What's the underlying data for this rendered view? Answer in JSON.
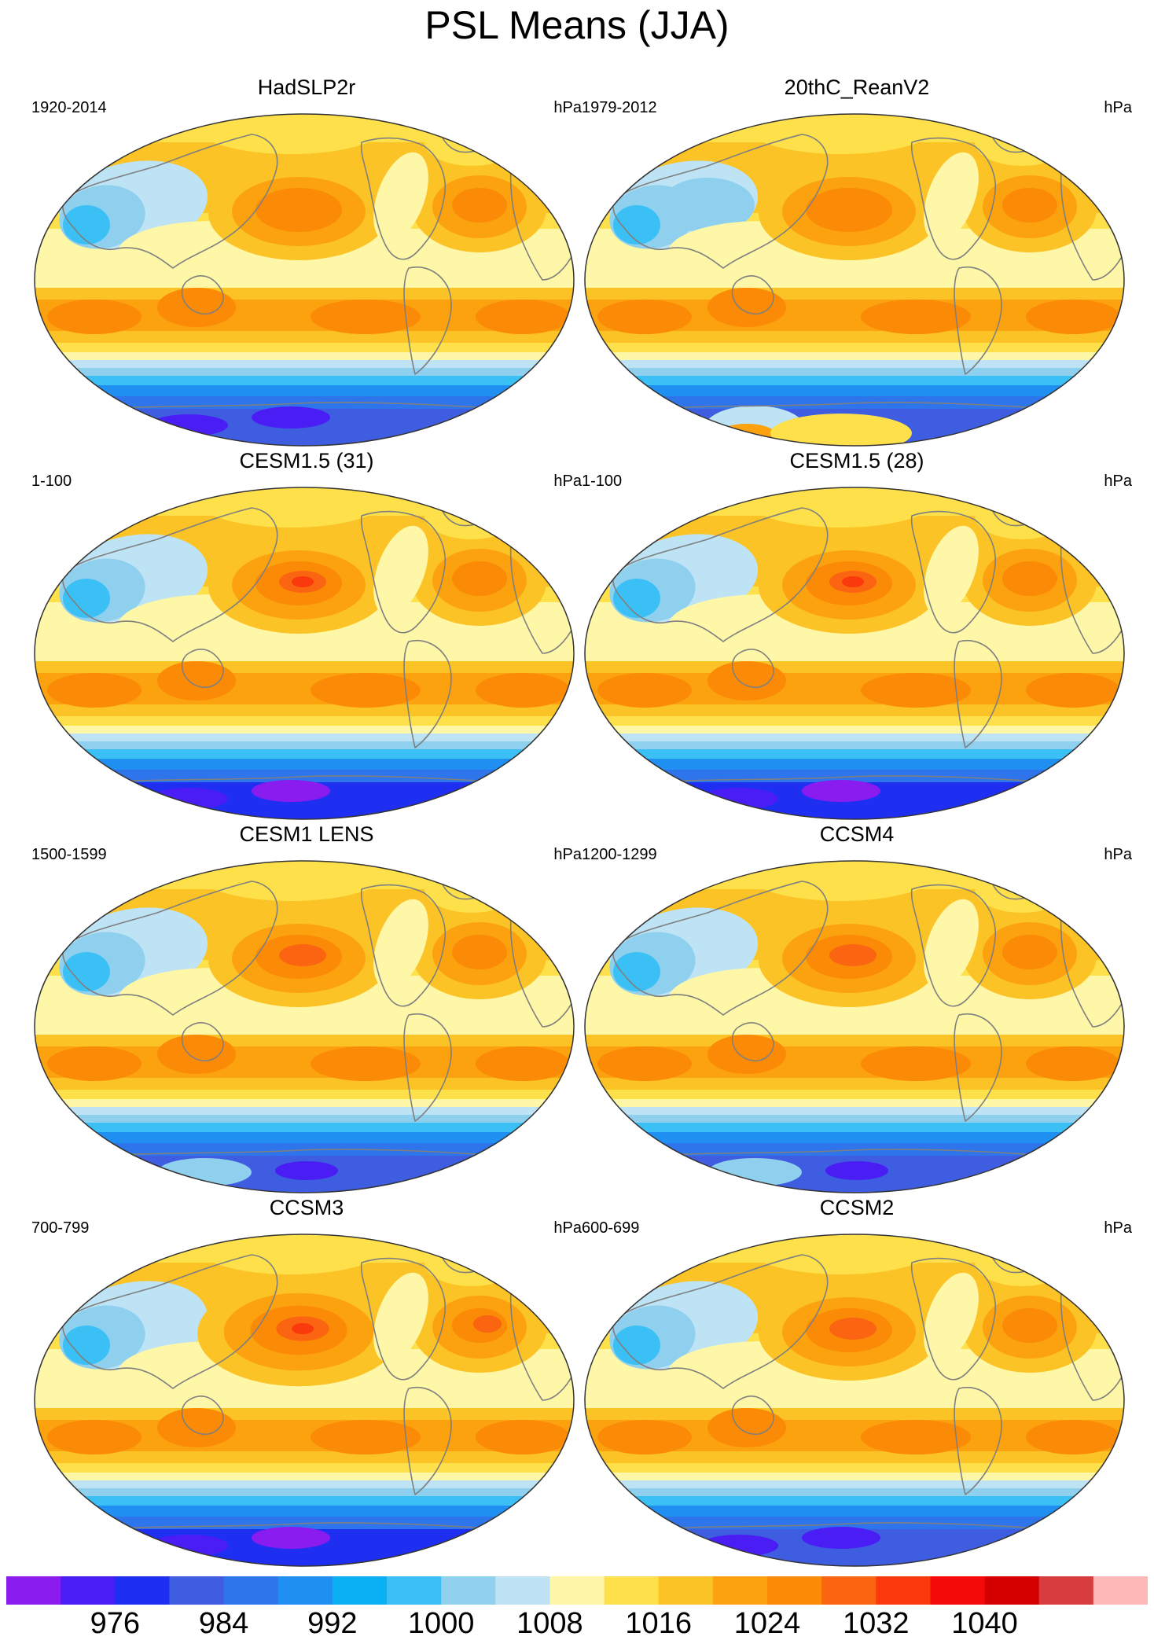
{
  "title": "PSL Means (JJA)",
  "panels": [
    {
      "title": "HadSLP2r",
      "period": "1920-2014",
      "units": "hPa",
      "variant": 0
    },
    {
      "title": "20thC_ReanV2",
      "period": "1979-2012",
      "units": "hPa",
      "variant": 1
    },
    {
      "title": "CESM1.5 (31)",
      "period": "1-100",
      "units": "hPa",
      "variant": 2
    },
    {
      "title": "CESM1.5 (28)",
      "period": "1-100",
      "units": "hPa",
      "variant": 2
    },
    {
      "title": "CESM1 LENS",
      "period": "1500-1599",
      "units": "hPa",
      "variant": 3
    },
    {
      "title": "CCSM4",
      "period": "1200-1299",
      "units": "hPa",
      "variant": 3
    },
    {
      "title": "CCSM3",
      "period": "700-799",
      "units": "hPa",
      "variant": 4
    },
    {
      "title": "CCSM2",
      "period": "600-699",
      "units": "hPa",
      "variant": 5
    }
  ],
  "colorbar": {
    "colors": [
      "#8a1cf0",
      "#4a1df5",
      "#1f2ff2",
      "#3f5de0",
      "#2e74ea",
      "#1f8ff2",
      "#0bb0f2",
      "#3bc0f6",
      "#8fd0ef",
      "#bde3f5",
      "#fff7a8",
      "#fde04a",
      "#fbc325",
      "#fba20e",
      "#fb8a06",
      "#fb6410",
      "#fa3a0c",
      "#f50a0a",
      "#d40000",
      "#d93c3c",
      "#fdb8b8"
    ],
    "labels": [
      "976",
      "984",
      "992",
      "1000",
      "1008",
      "1016",
      "1024",
      "1032",
      "1040"
    ]
  },
  "colors": {
    "land_outline": "#7f7f7f",
    "map_border": "#333333"
  }
}
